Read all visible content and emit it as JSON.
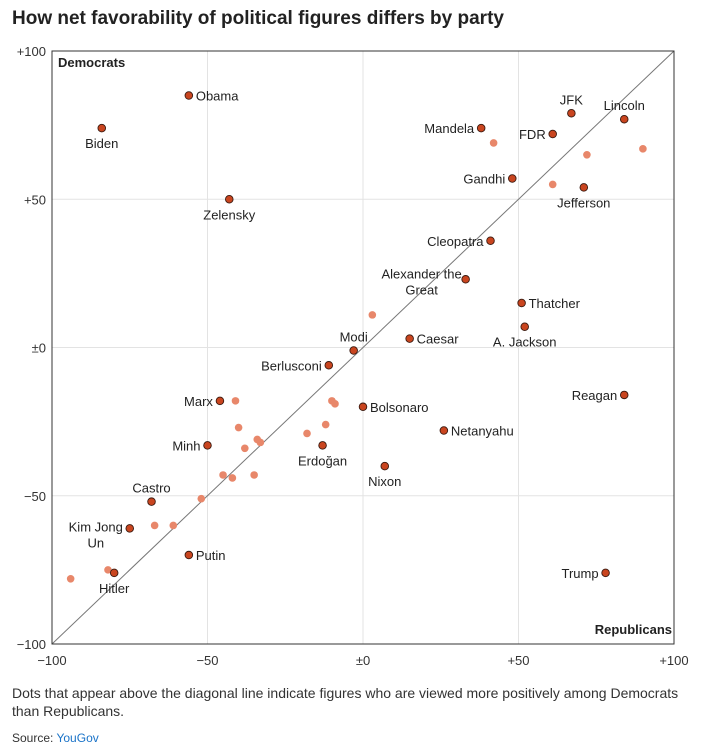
{
  "title": "How net favorability of political figures differs by party",
  "note": "Dots that appear above the diagonal line indicate figures who are viewed more positively among Democrats than Republicans.",
  "source": {
    "label": "Source:",
    "name": "YouGov"
  },
  "colors": {
    "highlight": "#c9451f",
    "highlight_stroke": "#3a1a10",
    "muted": "#e8876a",
    "grid": "#e3e3e3",
    "diagonal": "#777777"
  },
  "chart_data": {
    "type": "scatter",
    "x_axis_label": "Republicans",
    "y_axis_label": "Democrats",
    "xlim": [
      -100,
      100
    ],
    "ylim": [
      -100,
      100
    ],
    "x_ticks": [
      {
        "value": -100,
        "label": "−100"
      },
      {
        "value": -50,
        "label": "−50"
      },
      {
        "value": 0,
        "label": "±0"
      },
      {
        "value": 50,
        "label": "+50"
      },
      {
        "value": 100,
        "label": "+100"
      }
    ],
    "y_ticks": [
      {
        "value": 100,
        "label": "+100"
      },
      {
        "value": 50,
        "label": "+50"
      },
      {
        "value": 0,
        "label": "±0"
      },
      {
        "value": -50,
        "label": "−50"
      },
      {
        "value": -100,
        "label": "−100"
      }
    ],
    "grid": true,
    "diagonal_line": true,
    "labeled_points": [
      {
        "name": "Obama",
        "x": -56,
        "y": 85,
        "label_pos": "right"
      },
      {
        "name": "Biden",
        "x": -84,
        "y": 74,
        "label_pos": "below"
      },
      {
        "name": "Zelensky",
        "x": -43,
        "y": 50,
        "label_pos": "below"
      },
      {
        "name": "JFK",
        "x": 67,
        "y": 79,
        "label_pos": "above"
      },
      {
        "name": "Lincoln",
        "x": 84,
        "y": 77,
        "label_pos": "above"
      },
      {
        "name": "Mandela",
        "x": 38,
        "y": 74,
        "label_pos": "left"
      },
      {
        "name": "FDR",
        "x": 61,
        "y": 72,
        "label_pos": "left"
      },
      {
        "name": "Gandhi",
        "x": 48,
        "y": 57,
        "label_pos": "left"
      },
      {
        "name": "Jefferson",
        "x": 71,
        "y": 54,
        "label_pos": "below"
      },
      {
        "name": "Cleopatra",
        "x": 41,
        "y": 36,
        "label_pos": "left"
      },
      {
        "name": "Alexander the Great",
        "x": 33,
        "y": 23,
        "label_pos": "left-two-line"
      },
      {
        "name": "Thatcher",
        "x": 51,
        "y": 15,
        "label_pos": "right"
      },
      {
        "name": "A. Jackson",
        "x": 52,
        "y": 7,
        "label_pos": "below"
      },
      {
        "name": "Caesar",
        "x": 15,
        "y": 3,
        "label_pos": "right"
      },
      {
        "name": "Modi",
        "x": -3,
        "y": -1,
        "label_pos": "above"
      },
      {
        "name": "Berlusconi",
        "x": -11,
        "y": -6,
        "label_pos": "left"
      },
      {
        "name": "Reagan",
        "x": 84,
        "y": -16,
        "label_pos": "left"
      },
      {
        "name": "Marx",
        "x": -46,
        "y": -18,
        "label_pos": "left"
      },
      {
        "name": "Bolsonaro",
        "x": 0,
        "y": -20,
        "label_pos": "right"
      },
      {
        "name": "Netanyahu",
        "x": 26,
        "y": -28,
        "label_pos": "right"
      },
      {
        "name": "Minh",
        "x": -50,
        "y": -33,
        "label_pos": "left"
      },
      {
        "name": "Erdoğan",
        "x": -13,
        "y": -33,
        "label_pos": "below"
      },
      {
        "name": "Nixon",
        "x": 7,
        "y": -40,
        "label_pos": "below"
      },
      {
        "name": "Castro",
        "x": -68,
        "y": -52,
        "label_pos": "above"
      },
      {
        "name": "Kim Jong Un",
        "x": -75,
        "y": -61,
        "label_pos": "left-two-line"
      },
      {
        "name": "Putin",
        "x": -56,
        "y": -70,
        "label_pos": "right"
      },
      {
        "name": "Hitler",
        "x": -80,
        "y": -76,
        "label_pos": "below"
      },
      {
        "name": "Trump",
        "x": 78,
        "y": -76,
        "label_pos": "left"
      }
    ],
    "unlabeled_points": [
      {
        "x": 42,
        "y": 69
      },
      {
        "x": 90,
        "y": 67
      },
      {
        "x": 72,
        "y": 65
      },
      {
        "x": 61,
        "y": 55
      },
      {
        "x": 3,
        "y": 11
      },
      {
        "x": -41,
        "y": -18
      },
      {
        "x": -10,
        "y": -18
      },
      {
        "x": -9,
        "y": -19
      },
      {
        "x": -40,
        "y": -27
      },
      {
        "x": -12,
        "y": -26
      },
      {
        "x": -18,
        "y": -29
      },
      {
        "x": -34,
        "y": -31
      },
      {
        "x": -33,
        "y": -32
      },
      {
        "x": -38,
        "y": -34
      },
      {
        "x": -45,
        "y": -43
      },
      {
        "x": -42,
        "y": -44
      },
      {
        "x": -35,
        "y": -43
      },
      {
        "x": -52,
        "y": -51
      },
      {
        "x": -67,
        "y": -60
      },
      {
        "x": -61,
        "y": -60
      },
      {
        "x": -82,
        "y": -75
      },
      {
        "x": -94,
        "y": -78
      }
    ]
  }
}
